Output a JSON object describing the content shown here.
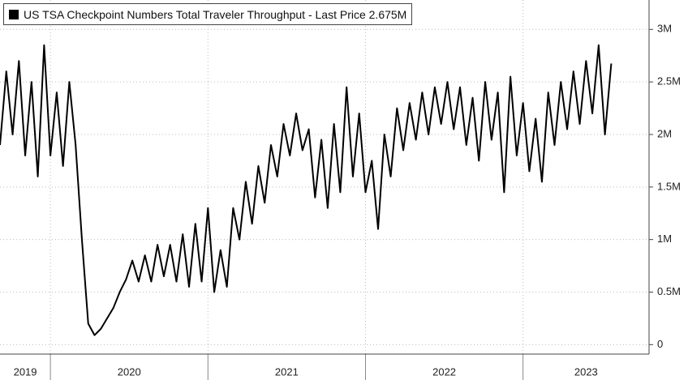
{
  "chart_data": {
    "type": "line",
    "title": "US TSA Checkpoint Numbers Total Traveler Throughput - Last Price 2.675M",
    "color": "#000000",
    "grid": true,
    "xlim": [
      2019.68,
      2023.8
    ],
    "ylim": [
      -90000,
      3280000
    ],
    "xticks": [
      2019,
      2020,
      2021,
      2022,
      2023
    ],
    "yticks": [
      0,
      {
        "value": 500000,
        "label": "0.5M"
      },
      {
        "value": 1000000,
        "label": "1M"
      },
      {
        "value": 1500000,
        "label": "1.5M"
      },
      {
        "value": 2000000,
        "label": "2M"
      },
      {
        "value": 2500000,
        "label": "2.5M"
      },
      {
        "value": 3000000,
        "label": "3M"
      }
    ],
    "x": [
      2019.68,
      2019.72,
      2019.76,
      2019.8,
      2019.84,
      2019.88,
      2019.92,
      2019.96,
      2020.0,
      2020.04,
      2020.08,
      2020.12,
      2020.16,
      2020.2,
      2020.24,
      2020.28,
      2020.32,
      2020.36,
      2020.4,
      2020.44,
      2020.48,
      2020.52,
      2020.56,
      2020.6,
      2020.64,
      2020.68,
      2020.72,
      2020.76,
      2020.8,
      2020.84,
      2020.88,
      2020.92,
      2020.96,
      2021.0,
      2021.04,
      2021.08,
      2021.12,
      2021.16,
      2021.2,
      2021.24,
      2021.28,
      2021.32,
      2021.36,
      2021.4,
      2021.44,
      2021.48,
      2021.52,
      2021.56,
      2021.6,
      2021.64,
      2021.68,
      2021.72,
      2021.76,
      2021.8,
      2021.84,
      2021.88,
      2021.92,
      2021.96,
      2022.0,
      2022.04,
      2022.08,
      2022.12,
      2022.16,
      2022.2,
      2022.24,
      2022.28,
      2022.32,
      2022.36,
      2022.4,
      2022.44,
      2022.48,
      2022.52,
      2022.56,
      2022.6,
      2022.64,
      2022.68,
      2022.72,
      2022.76,
      2022.8,
      2022.84,
      2022.88,
      2022.92,
      2022.96,
      2023.0,
      2023.04,
      2023.08,
      2023.12,
      2023.16,
      2023.2,
      2023.24,
      2023.28,
      2023.32,
      2023.36,
      2023.4,
      2023.44,
      2023.48,
      2023.52,
      2023.56
    ],
    "values": [
      1900000,
      2600000,
      2000000,
      2700000,
      1800000,
      2500000,
      1600000,
      2850000,
      1800000,
      2400000,
      1700000,
      2500000,
      1900000,
      1000000,
      200000,
      90000,
      150000,
      250000,
      350000,
      500000,
      620000,
      800000,
      600000,
      850000,
      600000,
      950000,
      650000,
      950000,
      600000,
      1050000,
      550000,
      1150000,
      600000,
      1300000,
      500000,
      900000,
      550000,
      1300000,
      1000000,
      1550000,
      1150000,
      1700000,
      1350000,
      1900000,
      1600000,
      2100000,
      1800000,
      2200000,
      1850000,
      2050000,
      1400000,
      1950000,
      1300000,
      2100000,
      1450000,
      2450000,
      1600000,
      2200000,
      1450000,
      1750000,
      1100000,
      2000000,
      1600000,
      2250000,
      1850000,
      2300000,
      1950000,
      2400000,
      2000000,
      2450000,
      2100000,
      2500000,
      2050000,
      2450000,
      1900000,
      2350000,
      1750000,
      2500000,
      1950000,
      2400000,
      1450000,
      2550000,
      1800000,
      2300000,
      1650000,
      2150000,
      1550000,
      2400000,
      1900000,
      2500000,
      2050000,
      2600000,
      2100000,
      2700000,
      2200000,
      2850000,
      2000000,
      2675000
    ]
  }
}
